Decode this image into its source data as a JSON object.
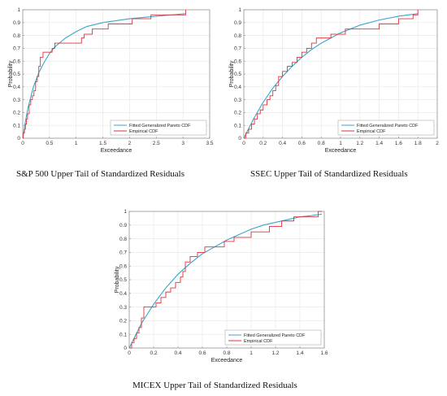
{
  "colors": {
    "fitted": "#3aa6c8",
    "empirical": "#e0303a",
    "grid": "#e4e4e4",
    "axis": "#888888"
  },
  "captions": [
    "S&P 500 Upper Tail of Standardized Residuals",
    "SSEC Upper Tail of Standardized Residuals",
    "MICEX Upper Tail of Standardized Residuals"
  ],
  "chart_data": [
    {
      "type": "line",
      "xlabel": "Exceedance",
      "ylabel": "Probability",
      "xlim": [
        0,
        3.5
      ],
      "ylim": [
        0,
        1
      ],
      "xticks": [
        "0",
        "0.5",
        "1",
        "1.5",
        "2",
        "2.5",
        "3",
        "3.5"
      ],
      "yticks": [
        "0",
        "0.1",
        "0.2",
        "0.3",
        "0.4",
        "0.5",
        "0.6",
        "0.7",
        "0.8",
        "0.9",
        "1"
      ],
      "grid": true,
      "legend": "bottom-right",
      "series": [
        {
          "name": "Fitted Generalized Pareto CDF",
          "kind": "curve",
          "x": [
            0,
            0.05,
            0.1,
            0.2,
            0.3,
            0.4,
            0.5,
            0.6,
            0.8,
            1.0,
            1.2,
            1.5,
            2.0,
            2.5,
            3.05
          ],
          "y": [
            0,
            0.13,
            0.24,
            0.4,
            0.51,
            0.59,
            0.66,
            0.71,
            0.78,
            0.83,
            0.87,
            0.9,
            0.93,
            0.95,
            0.97
          ]
        },
        {
          "name": "Empirical CDF",
          "kind": "step",
          "x": [
            0,
            0.01,
            0.03,
            0.05,
            0.07,
            0.09,
            0.12,
            0.15,
            0.18,
            0.21,
            0.24,
            0.27,
            0.3,
            0.33,
            0.38,
            0.5,
            0.55,
            0.6,
            1.1,
            1.15,
            1.3,
            1.6,
            2.05,
            2.4,
            3.05
          ],
          "y": [
            0,
            0.04,
            0.07,
            0.11,
            0.15,
            0.19,
            0.26,
            0.3,
            0.33,
            0.37,
            0.44,
            0.48,
            0.56,
            0.63,
            0.67,
            0.67,
            0.7,
            0.74,
            0.78,
            0.81,
            0.85,
            0.89,
            0.93,
            0.96,
            1.0
          ]
        }
      ]
    },
    {
      "type": "line",
      "xlabel": "Exceedance",
      "ylabel": "Probability",
      "xlim": [
        0,
        2
      ],
      "ylim": [
        0,
        1
      ],
      "xticks": [
        "0",
        "0.2",
        "0.4",
        "0.6",
        "0.8",
        "1",
        "1.2",
        "1.4",
        "1.6",
        "1.8",
        "2"
      ],
      "yticks": [
        "0",
        "0.1",
        "0.2",
        "0.3",
        "0.4",
        "0.5",
        "0.6",
        "0.7",
        "0.8",
        "0.9",
        "1"
      ],
      "grid": true,
      "legend": "bottom-right",
      "series": [
        {
          "name": "Fitted Generalized Pareto CDF",
          "kind": "curve",
          "x": [
            0,
            0.1,
            0.2,
            0.3,
            0.4,
            0.5,
            0.6,
            0.7,
            0.8,
            0.9,
            1.0,
            1.2,
            1.4,
            1.6,
            1.8
          ],
          "y": [
            0,
            0.15,
            0.28,
            0.39,
            0.48,
            0.56,
            0.63,
            0.69,
            0.74,
            0.78,
            0.82,
            0.88,
            0.92,
            0.95,
            0.97
          ]
        },
        {
          "name": "Empirical CDF",
          "kind": "step",
          "x": [
            0,
            0.02,
            0.05,
            0.08,
            0.11,
            0.14,
            0.17,
            0.2,
            0.24,
            0.27,
            0.3,
            0.33,
            0.36,
            0.4,
            0.45,
            0.5,
            0.55,
            0.6,
            0.65,
            0.7,
            0.75,
            0.8,
            0.9,
            1.05,
            1.2,
            1.4,
            1.6,
            1.75,
            1.8
          ],
          "y": [
            0,
            0.04,
            0.07,
            0.11,
            0.15,
            0.19,
            0.22,
            0.26,
            0.3,
            0.33,
            0.37,
            0.41,
            0.48,
            0.52,
            0.56,
            0.59,
            0.63,
            0.67,
            0.7,
            0.74,
            0.78,
            0.78,
            0.81,
            0.85,
            0.85,
            0.89,
            0.93,
            0.96,
            1.0
          ]
        }
      ]
    },
    {
      "type": "line",
      "xlabel": "Exceedance",
      "ylabel": "Probability",
      "xlim": [
        0,
        1.6
      ],
      "ylim": [
        0,
        1
      ],
      "xticks": [
        "0",
        "0.2",
        "0.4",
        "0.6",
        "0.8",
        "1",
        "1.2",
        "1.4",
        "1.6"
      ],
      "yticks": [
        "0",
        "0.1",
        "0.2",
        "0.3",
        "0.4",
        "0.5",
        "0.6",
        "0.7",
        "0.8",
        "0.9",
        "1"
      ],
      "grid": true,
      "legend": "bottom-right",
      "series": [
        {
          "name": "Fitted Generalized Pareto CDF",
          "kind": "curve",
          "x": [
            0,
            0.1,
            0.2,
            0.3,
            0.4,
            0.5,
            0.6,
            0.7,
            0.8,
            0.9,
            1.0,
            1.1,
            1.2,
            1.3,
            1.4,
            1.5,
            1.58
          ],
          "y": [
            0,
            0.18,
            0.32,
            0.44,
            0.54,
            0.62,
            0.69,
            0.74,
            0.79,
            0.83,
            0.87,
            0.9,
            0.92,
            0.94,
            0.96,
            0.97,
            0.98
          ]
        },
        {
          "name": "Empirical CDF",
          "kind": "step",
          "x": [
            0,
            0.02,
            0.04,
            0.06,
            0.08,
            0.1,
            0.12,
            0.22,
            0.26,
            0.3,
            0.34,
            0.38,
            0.42,
            0.44,
            0.46,
            0.5,
            0.56,
            0.62,
            0.78,
            0.86,
            1.0,
            1.15,
            1.25,
            1.35,
            1.55,
            1.58
          ],
          "y": [
            0,
            0.04,
            0.07,
            0.11,
            0.15,
            0.22,
            0.3,
            0.33,
            0.37,
            0.41,
            0.44,
            0.48,
            0.52,
            0.56,
            0.63,
            0.67,
            0.7,
            0.74,
            0.78,
            0.81,
            0.85,
            0.89,
            0.93,
            0.96,
            1.0,
            1.0
          ]
        }
      ]
    }
  ]
}
